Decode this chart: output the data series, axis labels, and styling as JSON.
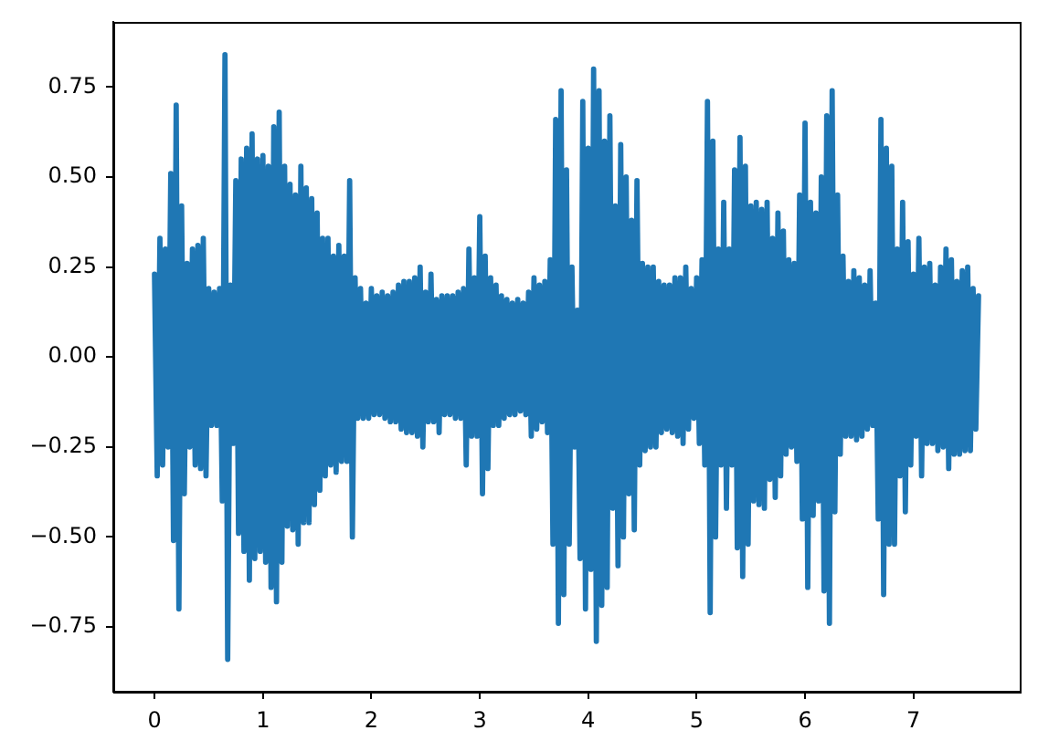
{
  "chart_data": {
    "type": "line",
    "color": "#1f77b4",
    "xlim": [
      -0.38,
      7.98
    ],
    "xticks": [
      0,
      1,
      2,
      3,
      4,
      5,
      6,
      7
    ],
    "ylim": [
      -0.93,
      0.93
    ],
    "yticks": [
      {
        "value": -0.75,
        "label": "−0.75"
      },
      {
        "value": -0.5,
        "label": "−0.50"
      },
      {
        "value": -0.25,
        "label": "−0.25"
      },
      {
        "value": 0,
        "label": "0.00"
      },
      {
        "value": 0.25,
        "label": "0.25"
      },
      {
        "value": 0.5,
        "label": "0.50"
      },
      {
        "value": 0.75,
        "label": "0.75"
      }
    ],
    "x": [
      0,
      0.025,
      0.05,
      0.075,
      0.1,
      0.125,
      0.15,
      0.175,
      0.2,
      0.225,
      0.25,
      0.275,
      0.3,
      0.325,
      0.35,
      0.375,
      0.4,
      0.425,
      0.45,
      0.475,
      0.5,
      0.525,
      0.55,
      0.575,
      0.6,
      0.625,
      0.65,
      0.675,
      0.7,
      0.725,
      0.75,
      0.775,
      0.8,
      0.825,
      0.85,
      0.875,
      0.9,
      0.925,
      0.95,
      0.975,
      1,
      1.025,
      1.05,
      1.075,
      1.1,
      1.125,
      1.15,
      1.175,
      1.2,
      1.225,
      1.25,
      1.275,
      1.3,
      1.325,
      1.35,
      1.375,
      1.4,
      1.425,
      1.45,
      1.475,
      1.5,
      1.525,
      1.55,
      1.575,
      1.6,
      1.625,
      1.65,
      1.675,
      1.7,
      1.725,
      1.75,
      1.775,
      1.8,
      1.825,
      1.85,
      1.875,
      1.9,
      1.925,
      1.95,
      1.975,
      2,
      2.025,
      2.05,
      2.075,
      2.1,
      2.125,
      2.15,
      2.175,
      2.2,
      2.225,
      2.25,
      2.275,
      2.3,
      2.325,
      2.35,
      2.375,
      2.4,
      2.425,
      2.45,
      2.475,
      2.5,
      2.525,
      2.55,
      2.575,
      2.6,
      2.625,
      2.65,
      2.675,
      2.7,
      2.725,
      2.75,
      2.775,
      2.8,
      2.825,
      2.85,
      2.875,
      2.9,
      2.925,
      2.95,
      2.975,
      3,
      3.025,
      3.05,
      3.075,
      3.1,
      3.125,
      3.15,
      3.175,
      3.2,
      3.225,
      3.25,
      3.275,
      3.3,
      3.325,
      3.35,
      3.375,
      3.4,
      3.425,
      3.45,
      3.475,
      3.5,
      3.525,
      3.55,
      3.575,
      3.6,
      3.625,
      3.65,
      3.675,
      3.7,
      3.725,
      3.75,
      3.775,
      3.8,
      3.825,
      3.85,
      3.875,
      3.9,
      3.925,
      3.95,
      3.975,
      4,
      4.025,
      4.05,
      4.075,
      4.1,
      4.125,
      4.15,
      4.175,
      4.2,
      4.225,
      4.25,
      4.275,
      4.3,
      4.325,
      4.35,
      4.375,
      4.4,
      4.425,
      4.45,
      4.475,
      4.5,
      4.525,
      4.55,
      4.575,
      4.6,
      4.625,
      4.65,
      4.675,
      4.7,
      4.725,
      4.75,
      4.775,
      4.8,
      4.825,
      4.85,
      4.875,
      4.9,
      4.925,
      4.95,
      4.975,
      5,
      5.025,
      5.05,
      5.075,
      5.1,
      5.125,
      5.15,
      5.175,
      5.2,
      5.225,
      5.25,
      5.275,
      5.3,
      5.325,
      5.35,
      5.375,
      5.4,
      5.425,
      5.45,
      5.475,
      5.5,
      5.525,
      5.55,
      5.575,
      5.6,
      5.625,
      5.65,
      5.675,
      5.7,
      5.725,
      5.75,
      5.775,
      5.8,
      5.825,
      5.85,
      5.875,
      5.9,
      5.925,
      5.95,
      5.975,
      6,
      6.025,
      6.05,
      6.075,
      6.1,
      6.125,
      6.15,
      6.175,
      6.2,
      6.225,
      6.25,
      6.275,
      6.3,
      6.325,
      6.35,
      6.375,
      6.4,
      6.425,
      6.45,
      6.475,
      6.5,
      6.525,
      6.55,
      6.575,
      6.6,
      6.625,
      6.65,
      6.675,
      6.7,
      6.725,
      6.75,
      6.775,
      6.8,
      6.825,
      6.85,
      6.875,
      6.9,
      6.925,
      6.95,
      6.975,
      7,
      7.025,
      7.05,
      7.075,
      7.1,
      7.125,
      7.15,
      7.175,
      7.2,
      7.225,
      7.25,
      7.275,
      7.3,
      7.325,
      7.35,
      7.375,
      7.4,
      7.425,
      7.45,
      7.475,
      7.5,
      7.525,
      7.55,
      7.575,
      7.6
    ],
    "values": [
      0.23,
      -0.33,
      0.33,
      -0.3,
      0.3,
      -0.25,
      0.51,
      -0.51,
      0.7,
      -0.7,
      0.42,
      -0.38,
      0.26,
      -0.25,
      0.3,
      -0.3,
      0.31,
      -0.31,
      0.33,
      -0.33,
      0.19,
      -0.19,
      0.18,
      -0.19,
      0.19,
      -0.4,
      0.84,
      -0.84,
      0.2,
      -0.24,
      0.49,
      -0.49,
      0.55,
      -0.54,
      0.58,
      -0.62,
      0.62,
      -0.56,
      0.55,
      -0.54,
      0.56,
      -0.57,
      0.53,
      -0.64,
      0.64,
      -0.68,
      0.68,
      -0.57,
      0.53,
      -0.47,
      0.48,
      -0.48,
      0.45,
      -0.52,
      0.53,
      -0.46,
      0.47,
      -0.46,
      0.44,
      -0.41,
      0.4,
      -0.37,
      0.33,
      -0.33,
      0.33,
      -0.3,
      0.28,
      -0.32,
      0.31,
      -0.29,
      0.28,
      -0.29,
      0.49,
      -0.5,
      0.22,
      -0.17,
      0.19,
      -0.17,
      0.15,
      -0.17,
      0.19,
      -0.16,
      0.17,
      -0.16,
      0.18,
      -0.17,
      0.17,
      -0.18,
      0.18,
      -0.18,
      0.2,
      -0.2,
      0.21,
      -0.21,
      0.21,
      -0.21,
      0.22,
      -0.22,
      0.25,
      -0.25,
      0.18,
      -0.18,
      0.23,
      -0.18,
      0.16,
      -0.21,
      0.17,
      -0.16,
      0.17,
      -0.16,
      0.17,
      -0.17,
      0.18,
      -0.17,
      0.19,
      -0.3,
      0.3,
      -0.22,
      0.22,
      -0.22,
      0.39,
      -0.38,
      0.28,
      -0.31,
      0.22,
      -0.19,
      0.2,
      -0.19,
      0.17,
      -0.17,
      0.16,
      -0.16,
      0.15,
      -0.16,
      0.16,
      -0.15,
      0.15,
      -0.16,
      0.18,
      -0.22,
      0.22,
      -0.2,
      0.2,
      -0.18,
      0.21,
      -0.21,
      0.27,
      -0.52,
      0.66,
      -0.74,
      0.74,
      -0.66,
      0.52,
      -0.52,
      0.25,
      -0.25,
      0.13,
      -0.56,
      0.71,
      -0.7,
      0.58,
      -0.59,
      0.8,
      -0.79,
      0.74,
      -0.69,
      0.6,
      -0.64,
      0.67,
      -0.42,
      0.42,
      -0.58,
      0.59,
      -0.5,
      0.5,
      -0.38,
      0.38,
      -0.48,
      0.49,
      -0.3,
      0.26,
      -0.26,
      0.25,
      -0.25,
      0.25,
      -0.25,
      0.21,
      -0.21,
      0.2,
      -0.2,
      0.2,
      -0.21,
      0.22,
      -0.22,
      0.22,
      -0.24,
      0.25,
      -0.2,
      0.19,
      -0.17,
      0.22,
      -0.24,
      0.27,
      -0.3,
      0.71,
      -0.71,
      0.6,
      -0.5,
      0.3,
      -0.3,
      0.43,
      -0.42,
      0.3,
      -0.3,
      0.52,
      -0.53,
      0.61,
      -0.61,
      0.53,
      -0.52,
      0.42,
      -0.4,
      0.43,
      -0.41,
      0.41,
      -0.42,
      0.43,
      -0.34,
      0.33,
      -0.39,
      0.4,
      -0.33,
      0.35,
      -0.27,
      0.27,
      -0.25,
      0.26,
      -0.29,
      0.45,
      -0.45,
      0.65,
      -0.64,
      0.43,
      -0.44,
      0.4,
      -0.4,
      0.5,
      -0.65,
      0.67,
      -0.74,
      0.74,
      -0.43,
      0.45,
      -0.27,
      0.28,
      -0.22,
      0.21,
      -0.22,
      0.24,
      -0.23,
      0.22,
      -0.22,
      0.2,
      -0.2,
      0.24,
      -0.19,
      0.15,
      -0.45,
      0.66,
      -0.66,
      0.58,
      -0.52,
      0.53,
      -0.52,
      0.3,
      -0.33,
      0.43,
      -0.43,
      0.32,
      -0.3,
      0.23,
      -0.22,
      0.33,
      -0.33,
      0.25,
      -0.24,
      0.26,
      -0.24,
      0.2,
      -0.26,
      0.25,
      -0.25,
      0.3,
      -0.31,
      0.27,
      -0.27,
      0.21,
      -0.27,
      0.24,
      -0.26,
      0.25,
      -0.26,
      0.19,
      -0.2,
      0.17
    ]
  }
}
